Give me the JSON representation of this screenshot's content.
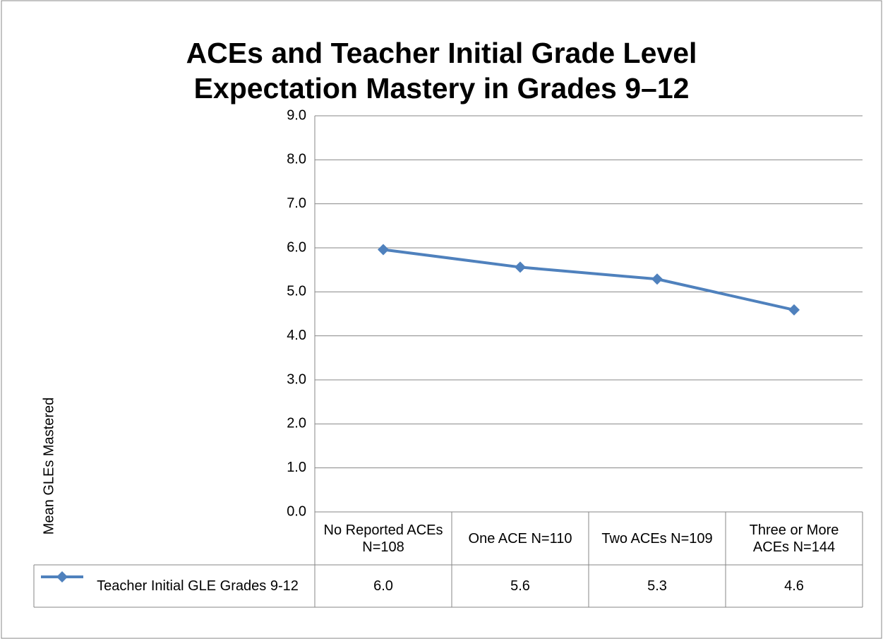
{
  "chart_data": {
    "type": "line",
    "title": "ACEs and Teacher Initial Grade Level Expectation Mastery in Grades 9–12",
    "y_label": "Mean GLEs Mastered",
    "categories": [
      "No Reported ACEs N=108",
      "One ACE N=110",
      "Two ACEs N=109",
      "Three or More ACEs N=144"
    ],
    "series": [
      {
        "name": "Teacher Initial GLE Grades 9-12",
        "color": "#4f81bd",
        "values": [
          5.96,
          5.56,
          5.29,
          4.59
        ],
        "value_labels": [
          "6.0",
          "5.6",
          "5.3",
          "4.6"
        ]
      }
    ],
    "ylim": [
      0,
      9
    ],
    "yticks": [
      {
        "value": 0,
        "label": "0.0"
      },
      {
        "value": 1,
        "label": "1.0"
      },
      {
        "value": 2,
        "label": "2.0"
      },
      {
        "value": 3,
        "label": "3.0"
      },
      {
        "value": 4,
        "label": "4.0"
      },
      {
        "value": 5,
        "label": "5.0"
      },
      {
        "value": 6,
        "label": "6.0"
      },
      {
        "value": 7,
        "label": "7.0"
      },
      {
        "value": 8,
        "label": "8.0"
      },
      {
        "value": 9,
        "label": "9.0"
      }
    ],
    "grid": true
  }
}
